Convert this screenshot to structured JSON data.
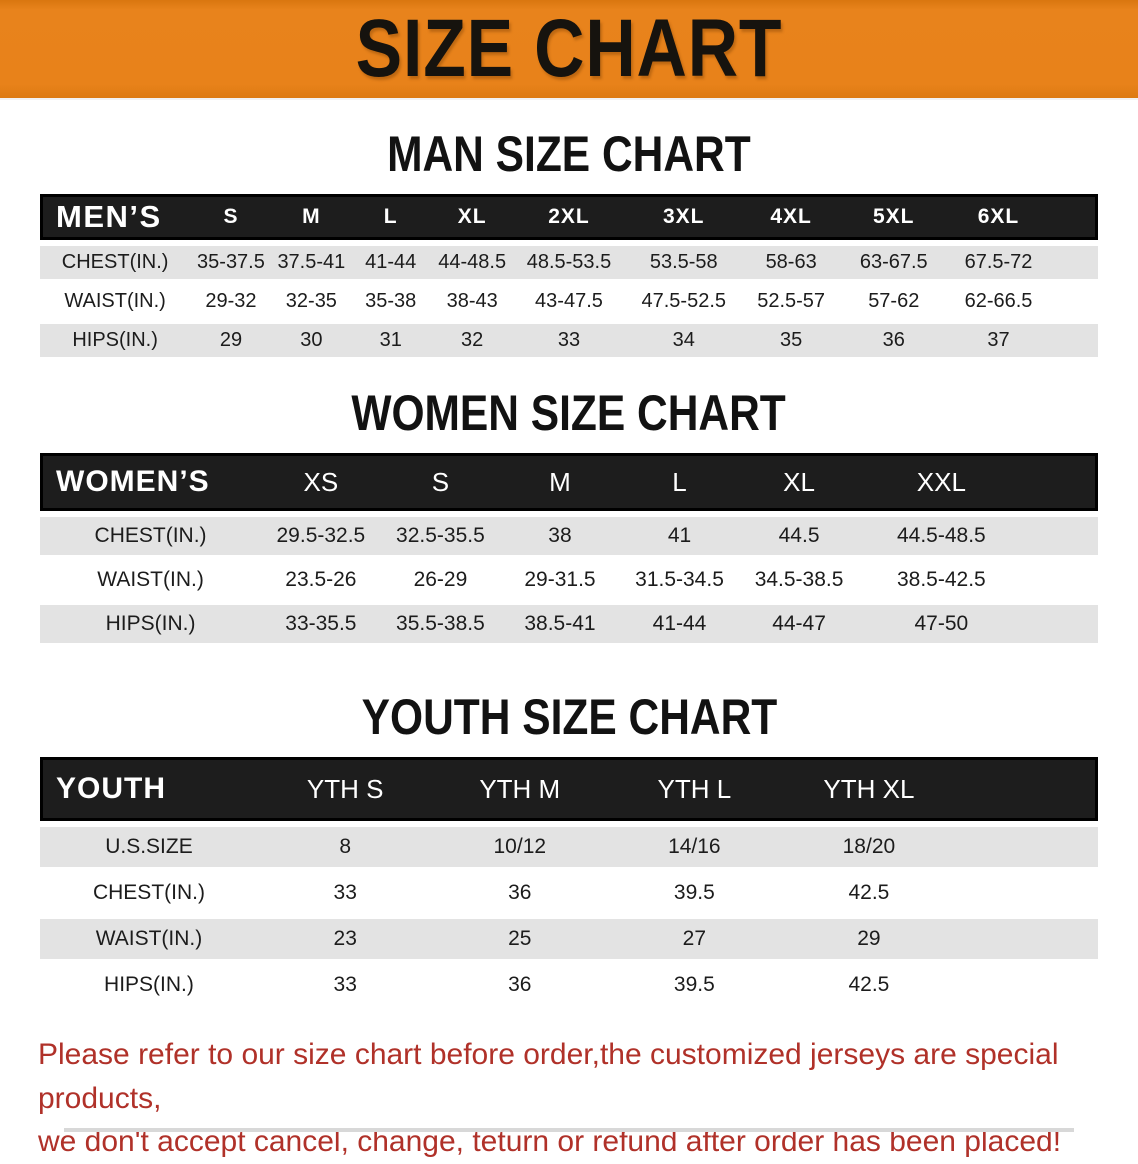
{
  "banner": {
    "title": "SIZE CHART"
  },
  "colors": {
    "banner_background": "#E8821A",
    "table_header_background": "#1D1D1D",
    "table_header_text": "#FFFFFF",
    "shaded_row_background": "#E3E3E3",
    "note_text": "#B03129"
  },
  "sections": [
    {
      "heading": "MAN SIZE CHART",
      "table": {
        "label_header": "MEN’S",
        "columns": [
          "S",
          "M",
          "L",
          "XL",
          "2XL",
          "3XL",
          "4XL",
          "5XL",
          "6XL"
        ],
        "rows": [
          {
            "label": "CHEST(IN.)",
            "values": [
              "35-37.5",
              "37.5-41",
              "41-44",
              "44-48.5",
              "48.5-53.5",
              "53.5-58",
              "58-63",
              "63-67.5",
              "67.5-72"
            ]
          },
          {
            "label": "WAIST(IN.)",
            "values": [
              "29-32",
              "32-35",
              "35-38",
              "38-43",
              "43-47.5",
              "47.5-52.5",
              "52.5-57",
              "57-62",
              "62-66.5"
            ]
          },
          {
            "label": "HIPS(IN.)",
            "values": [
              "29",
              "30",
              "31",
              "32",
              "33",
              "34",
              "35",
              "36",
              "37"
            ]
          }
        ]
      }
    },
    {
      "heading": "WOMEN SIZE CHART",
      "table": {
        "label_header": "WOMEN’S",
        "columns": [
          "XS",
          "S",
          "M",
          "L",
          "XL",
          "XXL"
        ],
        "rows": [
          {
            "label": "CHEST(IN.)",
            "values": [
              "29.5-32.5",
              "32.5-35.5",
              "38",
              "41",
              "44.5",
              "44.5-48.5"
            ]
          },
          {
            "label": "WAIST(IN.)",
            "values": [
              "23.5-26",
              "26-29",
              "29-31.5",
              "31.5-34.5",
              "34.5-38.5",
              "38.5-42.5"
            ]
          },
          {
            "label": "HIPS(IN.)",
            "values": [
              "33-35.5",
              "35.5-38.5",
              "38.5-41",
              "41-44",
              "44-47",
              "47-50"
            ]
          }
        ]
      }
    },
    {
      "heading": "YOUTH SIZE CHART",
      "table": {
        "label_header": "YOUTH",
        "columns": [
          "YTH S",
          "YTH M",
          "YTH L",
          "YTH XL"
        ],
        "rows": [
          {
            "label": "U.S.SIZE",
            "values": [
              "8",
              "10/12",
              "14/16",
              "18/20"
            ]
          },
          {
            "label": "CHEST(IN.)",
            "values": [
              "33",
              "36",
              "39.5",
              "42.5"
            ]
          },
          {
            "label": "WAIST(IN.)",
            "values": [
              "23",
              "25",
              "27",
              "29"
            ]
          },
          {
            "label": "HIPS(IN.)",
            "values": [
              "33",
              "36",
              "39.5",
              "42.5"
            ]
          }
        ]
      }
    }
  ],
  "note": {
    "line1": "Please refer to our size chart before order,the customized jerseys are special products,",
    "line2": "we don't accept cancel, change, teturn or refund after order has been placed!"
  }
}
